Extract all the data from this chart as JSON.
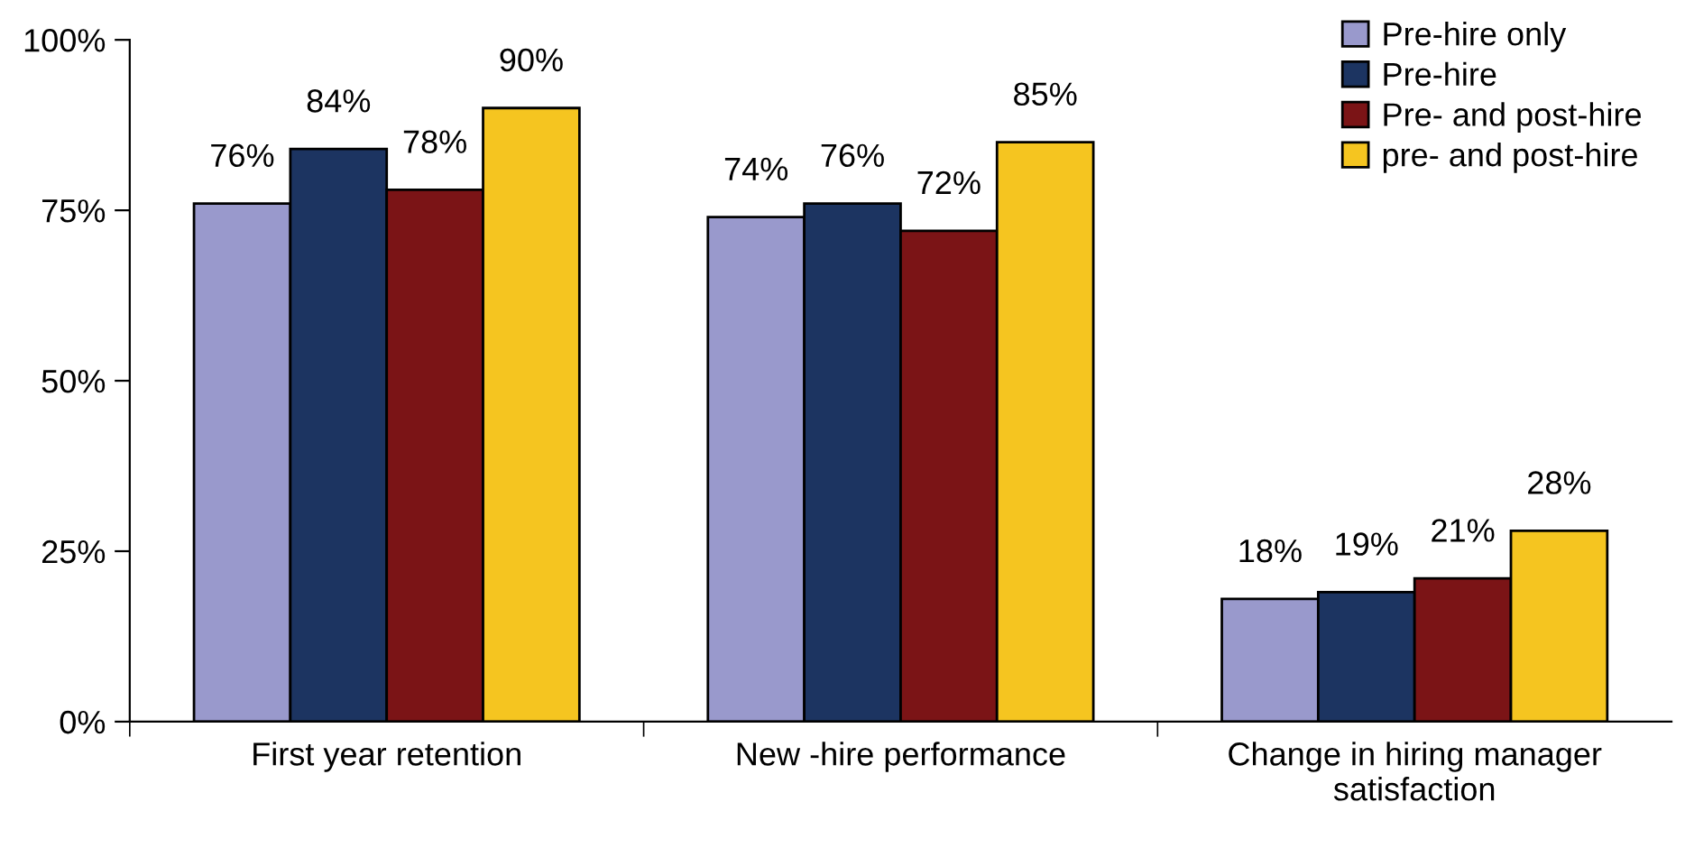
{
  "chart_data": {
    "type": "bar",
    "categories": [
      "First year retention",
      "New -hire performance",
      "Change in hiring manager\nsatisfaction"
    ],
    "series": [
      {
        "name": "Pre-hire only",
        "color": "#9999cc",
        "values": [
          76,
          74,
          18
        ],
        "value_labels": [
          "76%",
          "74%",
          "18%"
        ]
      },
      {
        "name": "Pre-hire",
        "color": "#1c3461",
        "values": [
          84,
          76,
          19
        ],
        "value_labels": [
          "84%",
          "76%",
          "19%"
        ]
      },
      {
        "name": "Pre- and post-hire",
        "color": "#7b1416",
        "values": [
          78,
          72,
          21
        ],
        "value_labels": [
          "78%",
          "72%",
          "21%"
        ]
      },
      {
        "name": "pre- and post-hire",
        "color": "#f5c520",
        "values": [
          90,
          85,
          28
        ],
        "value_labels": [
          "90%",
          "85%",
          "28%"
        ]
      }
    ],
    "ylim": [
      0,
      100
    ],
    "yticks": [
      {
        "value": 0,
        "label": "0%"
      },
      {
        "value": 25,
        "label": "25%"
      },
      {
        "value": 50,
        "label": "50%"
      },
      {
        "value": 75,
        "label": "75%"
      },
      {
        "value": 100,
        "label": "100%"
      }
    ],
    "grid": false,
    "legend": "top right"
  }
}
